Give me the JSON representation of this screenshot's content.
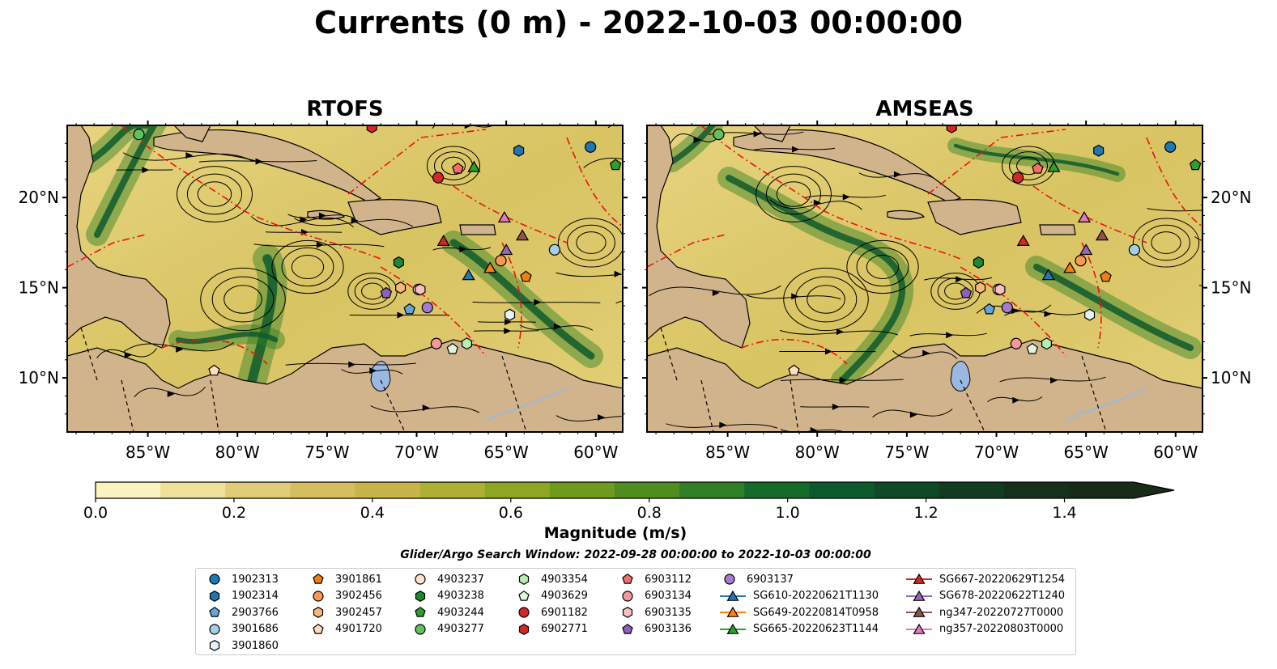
{
  "title": "Currents (0 m) - 2022-10-03 00:00:00",
  "panels": [
    {
      "title": "RTOFS"
    },
    {
      "title": "AMSEAS"
    }
  ],
  "chart_data": {
    "type": "heatmap",
    "x_ticks": [
      "85°W",
      "80°W",
      "75°W",
      "70°W",
      "65°W",
      "60°W"
    ],
    "y_ticks": [
      "20°N",
      "15°N",
      "10°N"
    ],
    "x_range_lon": [
      -89.5,
      -58.5
    ],
    "y_range_lat": [
      7,
      24
    ],
    "colorbar": {
      "label": "Magnitude (m/s)",
      "ticks": [
        "0.0",
        "0.2",
        "0.4",
        "0.6",
        "0.8",
        "1.0",
        "1.2",
        "1.4"
      ],
      "range": [
        0,
        1.5
      ],
      "extend": "max",
      "colors": [
        "#fbf4c0",
        "#efe09a",
        "#e1cc77",
        "#d6bd5e",
        "#c8b448",
        "#adb033",
        "#8fa620",
        "#6f9a1c",
        "#4f8d1f",
        "#2f7f24",
        "#156c2a",
        "#0d5a2c",
        "#0e4a28",
        "#133b21",
        "#16301c",
        "#1a2a18"
      ]
    },
    "platforms": [
      {
        "id": "1902313",
        "color": "#1f77b4",
        "marker": "circle",
        "lon": -60.3,
        "lat": 22.8
      },
      {
        "id": "1902314",
        "color": "#1f77b4",
        "marker": "hexagon",
        "lon": -64.3,
        "lat": 22.6
      },
      {
        "id": "2903766",
        "color": "#63a6dc",
        "marker": "pentagon",
        "lon": -70.4,
        "lat": 13.8
      },
      {
        "id": "3901686",
        "color": "#a6cee3",
        "marker": "circle",
        "lon": -62.3,
        "lat": 17.1
      },
      {
        "id": "3901860",
        "color": "#e6f2fb",
        "marker": "hexagon",
        "lon": -64.8,
        "lat": 13.5
      },
      {
        "id": "3901861",
        "color": "#f07f12",
        "marker": "pentagon",
        "lon": -63.9,
        "lat": 15.6
      },
      {
        "id": "3902456",
        "color": "#fb9a52",
        "marker": "circle",
        "lon": -65.3,
        "lat": 16.5
      },
      {
        "id": "3902457",
        "color": "#fbb875",
        "marker": "hexagon",
        "lon": -70.9,
        "lat": 15.0
      },
      {
        "id": "4901720",
        "color": "#fddcb9",
        "marker": "pentagon",
        "lon": -81.3,
        "lat": 10.4
      },
      {
        "id": "4903237",
        "color": "#fde3c7",
        "marker": "circle",
        "lon": -69.9,
        "lat": 14.9
      },
      {
        "id": "4903238",
        "color": "#1a8a30",
        "marker": "hexagon",
        "lon": -71.0,
        "lat": 16.4
      },
      {
        "id": "4903244",
        "color": "#2ca02c",
        "marker": "pentagon",
        "lon": -58.9,
        "lat": 21.8
      },
      {
        "id": "4903277",
        "color": "#5fc25f",
        "marker": "circle",
        "lon": -85.5,
        "lat": 23.5
      },
      {
        "id": "4903354",
        "color": "#b7efb0",
        "marker": "hexagon",
        "lon": -67.2,
        "lat": 11.9
      },
      {
        "id": "4903629",
        "color": "#dff7d9",
        "marker": "pentagon",
        "lon": -68.0,
        "lat": 11.6
      },
      {
        "id": "6901182",
        "color": "#d62728",
        "marker": "circle",
        "lon": -68.8,
        "lat": 21.1
      },
      {
        "id": "6902771",
        "color": "#d62728",
        "marker": "hexagon",
        "lon": -72.5,
        "lat": 23.9
      },
      {
        "id": "6903112",
        "color": "#f36d6d",
        "marker": "pentagon",
        "lon": -67.7,
        "lat": 21.6
      },
      {
        "id": "6903134",
        "color": "#f59898",
        "marker": "circle",
        "lon": -68.9,
        "lat": 11.9
      },
      {
        "id": "6903135",
        "color": "#fac0c0",
        "marker": "hexagon",
        "lon": -69.8,
        "lat": 14.9
      },
      {
        "id": "6903136",
        "color": "#8d5fc0",
        "marker": "pentagon",
        "lon": -71.7,
        "lat": 14.7
      },
      {
        "id": "6903137",
        "color": "#a57bcf",
        "marker": "circle",
        "lon": -69.4,
        "lat": 13.9
      },
      {
        "id": "SG610-20220621T1130",
        "color": "#1f77b4",
        "marker": "triangle",
        "lon": -67.1,
        "lat": 15.7
      },
      {
        "id": "SG649-20220814T0958",
        "color": "#ff7f0e",
        "marker": "triangle",
        "lon": -65.9,
        "lat": 16.1
      },
      {
        "id": "SG665-20220623T1144",
        "color": "#2ca02c",
        "marker": "triangle",
        "lon": -66.8,
        "lat": 21.7
      },
      {
        "id": "SG667-20220629T1254",
        "color": "#d62728",
        "marker": "triangle",
        "lon": -68.5,
        "lat": 17.6
      },
      {
        "id": "SG678-20220622T1240",
        "color": "#9467bd",
        "marker": "triangle",
        "lon": -65.0,
        "lat": 17.1
      },
      {
        "id": "ng347-20220727T0000",
        "color": "#8c564b",
        "marker": "triangle",
        "lon": -64.1,
        "lat": 17.9
      },
      {
        "id": "ng357-20220803T0000",
        "color": "#e377c2",
        "marker": "triangle",
        "lon": -65.1,
        "lat": 18.9
      }
    ]
  },
  "search_window": "Glider/Argo Search Window: 2022-09-28 00:00:00 to 2022-10-03 00:00:00"
}
